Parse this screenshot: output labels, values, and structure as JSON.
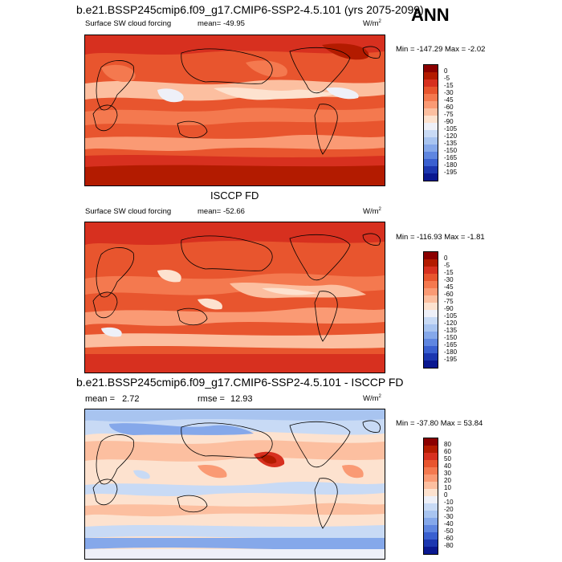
{
  "page": {
    "title_top": "b.e21.BSSP245cmip6.f09_g17.CMIP6-SSP2-4.5.101 (yrs 2075-2099)",
    "season": "ANN",
    "title_middle": "ISCCP FD",
    "title_bottom": "b.e21.BSSP245cmip6.f09_g17.CMIP6-SSP2-4.5.101 - ISCCP FD"
  },
  "panels": [
    {
      "variable": "Surface SW cloud forcing",
      "stat_label": "mean=",
      "stat_value": "-49.95",
      "units": "W/m",
      "units_exp": "2",
      "minmax": "Min = -147.29 Max =  -2.02",
      "levels": [
        "0",
        "-5",
        "-15",
        "-30",
        "-45",
        "-60",
        "-75",
        "-90",
        "-105",
        "-120",
        "-135",
        "-150",
        "-165",
        "-180",
        "-195"
      ],
      "colors": [
        "#8b0000",
        "#b31b00",
        "#d7301f",
        "#e8552e",
        "#f4794f",
        "#fa9a74",
        "#fcbfa0",
        "#fde2cf",
        "#eef0f8",
        "#c8daf5",
        "#a8c4f0",
        "#85a8ea",
        "#5f86e0",
        "#3a60d0",
        "#1c37b0",
        "#0a1890"
      ]
    },
    {
      "variable": "Surface SW cloud forcing",
      "stat_label": "mean=",
      "stat_value": "-52.66",
      "units": "W/m",
      "units_exp": "2",
      "minmax": "Min = -116.93 Max =  -1.81",
      "levels": [
        "0",
        "-5",
        "-15",
        "-30",
        "-45",
        "-60",
        "-75",
        "-90",
        "-105",
        "-120",
        "-135",
        "-150",
        "-165",
        "-180",
        "-195"
      ],
      "colors": [
        "#8b0000",
        "#b31b00",
        "#d7301f",
        "#e8552e",
        "#f4794f",
        "#fa9a74",
        "#fcbfa0",
        "#fde2cf",
        "#eef0f8",
        "#c8daf5",
        "#a8c4f0",
        "#85a8ea",
        "#5f86e0",
        "#3a60d0",
        "#1c37b0",
        "#0a1890"
      ]
    },
    {
      "variable": "",
      "stat_label": "mean =",
      "stat_value": "2.72",
      "stat2_label": "rmse =",
      "stat2_value": "12.93",
      "units": "W/m",
      "units_exp": "2",
      "minmax": "Min = -37.80 Max =  53.84",
      "levels": [
        "80",
        "60",
        "50",
        "40",
        "30",
        "20",
        "10",
        "0",
        "-10",
        "-20",
        "-30",
        "-40",
        "-50",
        "-60",
        "-80"
      ],
      "colors": [
        "#8b0000",
        "#b31b00",
        "#d7301f",
        "#e8552e",
        "#f4794f",
        "#fa9a74",
        "#fcbfa0",
        "#fde2cf",
        "#eef0f8",
        "#c8daf5",
        "#a8c4f0",
        "#85a8ea",
        "#5f86e0",
        "#3a60d0",
        "#1c37b0",
        "#0a1890"
      ]
    }
  ]
}
